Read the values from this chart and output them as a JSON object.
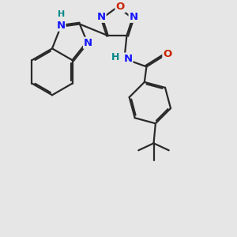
{
  "background_color": "#e6e6e6",
  "bond_color": "#2a2a2a",
  "bond_width": 1.6,
  "dbo": 0.06,
  "atom_colors": {
    "N": "#1414ff",
    "O": "#cc2200",
    "H_teal": "#008888",
    "C": "#2a2a2a"
  },
  "figsize": [
    3.0,
    3.0
  ],
  "dpi": 100
}
